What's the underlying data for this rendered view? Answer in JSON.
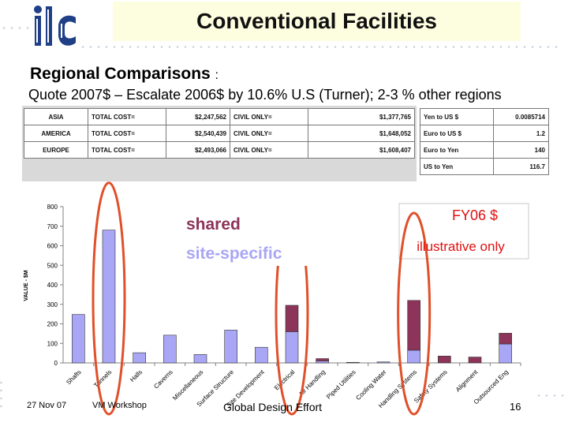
{
  "header": {
    "title": "Conventional Facilities",
    "logo_text": "ilc"
  },
  "section": {
    "heading": "Regional Comparisons",
    "heading_colon": ":",
    "subheading": "Quote 2007$ – Escalate 2006$ by 10.6% U.S (Turner); 2-3 % other regions"
  },
  "cost_table": {
    "rows": [
      {
        "region": "ASIA",
        "total_label": "TOTAL COST=",
        "total": "$2,247,562",
        "civil_label": "CIVIL ONLY=",
        "civil": "$1,377,765"
      },
      {
        "region": "AMERICA",
        "total_label": "TOTAL COST=",
        "total": "$2,540,439",
        "civil_label": "CIVIL ONLY=",
        "civil": "$1,648,052"
      },
      {
        "region": "EUROPE",
        "total_label": "TOTAL COST=",
        "total": "$2,493,066",
        "civil_label": "CIVIL ONLY=",
        "civil": "$1,608,407"
      }
    ]
  },
  "rate_table": {
    "rows": [
      {
        "label": "Yen to US $",
        "value": "0.0085714"
      },
      {
        "label": "Euro to US $",
        "value": "1.2"
      },
      {
        "label": "Euro to Yen",
        "value": "140"
      },
      {
        "label": "US to Yen",
        "value": "116.7"
      }
    ]
  },
  "legend": {
    "shared": "shared",
    "site_specific": "site-specific",
    "fy": "FY06 $",
    "note": "illustrative only"
  },
  "colors": {
    "shared": "#8c3459",
    "site_specific": "#a9a6f5",
    "circle": "#e0502a",
    "fy_text": "#e01010"
  },
  "chart_data": {
    "type": "bar",
    "stacked": true,
    "ylabel": "VALUE - $M",
    "ylim": [
      0,
      800
    ],
    "yticks": [
      0,
      100,
      200,
      300,
      400,
      500,
      600,
      700,
      800
    ],
    "categories": [
      "Shafts",
      "Tunnels",
      "Halls",
      "Caverns",
      "Miscellaneous",
      "Surface Structure",
      "Site Development",
      "Electrical",
      "Air Handling",
      "Piped Utilities",
      "Cooling Water",
      "Handling Systems",
      "Safety Systems",
      "Alignment",
      "Outsourced Eng"
    ],
    "series": [
      {
        "name": "site-specific",
        "values": [
          248,
          680,
          52,
          142,
          43,
          168,
          80,
          160,
          10,
          3,
          5,
          65,
          0,
          0,
          97
        ]
      },
      {
        "name": "shared",
        "values": [
          0,
          0,
          0,
          0,
          0,
          0,
          0,
          135,
          12,
          0,
          0,
          255,
          35,
          30,
          55
        ]
      }
    ],
    "highlighted": [
      "Tunnels",
      "Electrical",
      "Handling Systems"
    ]
  },
  "footer": {
    "date": "27 Nov 07",
    "event": "VM Workshop",
    "center": "Global Design Effort",
    "page": "16"
  }
}
